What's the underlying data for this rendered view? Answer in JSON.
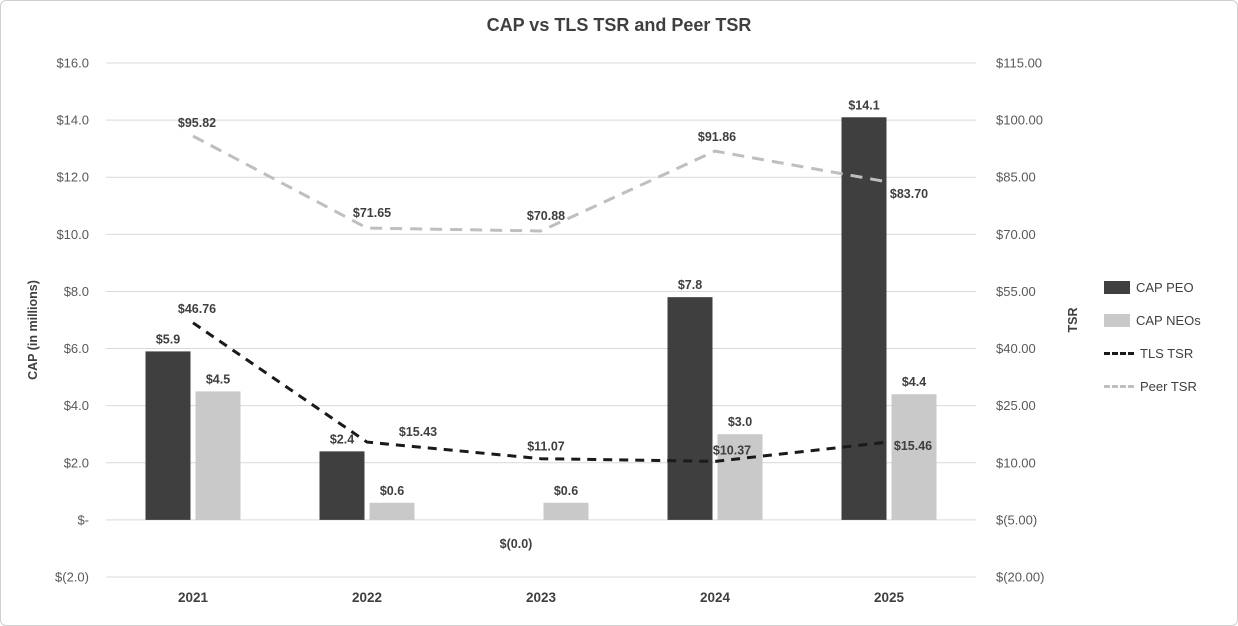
{
  "chart_data": {
    "type": "bar+line combo",
    "title": "CAP vs TLS TSR and Peer TSR",
    "ylabel_left": "CAP (in millions)",
    "ylabel_right": "TSR",
    "categories": [
      "2021",
      "2022",
      "2023",
      "2024",
      "2025"
    ],
    "bar_series": [
      {
        "name": "CAP PEO",
        "axis": "left",
        "color": "#3f3f3f",
        "values": [
          5.9,
          2.4,
          -0.0,
          7.8,
          14.1
        ],
        "labels": [
          "$5.9",
          "$2.4",
          "$(0.0)",
          "$7.8",
          "$14.1"
        ]
      },
      {
        "name": "CAP NEOs",
        "axis": "left",
        "color": "#c9c9c9",
        "values": [
          4.5,
          0.6,
          0.6,
          3.0,
          4.4
        ],
        "labels": [
          "$4.5",
          "$0.6",
          "$0.6",
          "$3.0",
          "$4.4"
        ]
      }
    ],
    "line_series": [
      {
        "name": "TLS TSR",
        "axis": "right",
        "color": "#1a1a1a",
        "dash": "9 7",
        "values": [
          46.76,
          15.43,
          11.07,
          10.37,
          15.46
        ],
        "labels": [
          "$46.76",
          "$15.43",
          "$11.07",
          "$10.37",
          "$15.46"
        ]
      },
      {
        "name": "Peer TSR",
        "axis": "right",
        "color": "#bfbfbf",
        "dash": "12 8",
        "values": [
          95.82,
          71.65,
          70.88,
          91.86,
          83.7
        ],
        "labels": [
          "$95.82",
          "$71.65",
          "$70.88",
          "$91.86",
          "$83.70"
        ]
      }
    ],
    "left_axis": {
      "min": -2,
      "max": 16,
      "step": 2,
      "tick_labels": [
        "$16.0",
        "$14.0",
        "$12.0",
        "$10.0",
        "$8.0",
        "$6.0",
        "$4.0",
        "$2.0",
        "$-",
        "$(2.0)"
      ]
    },
    "right_axis": {
      "min": -20,
      "max": 115,
      "step": 15,
      "tick_labels": [
        "$115.00",
        "$100.00",
        "$85.00",
        "$70.00",
        "$55.00",
        "$40.00",
        "$25.00",
        "$10.00",
        "$(5.00)",
        "$(20.00)"
      ]
    },
    "grid": true,
    "gridline_color": "#d9d9d9",
    "tick_color": "#595959",
    "label_color": "#3f3f3f",
    "legend_position": "right"
  }
}
